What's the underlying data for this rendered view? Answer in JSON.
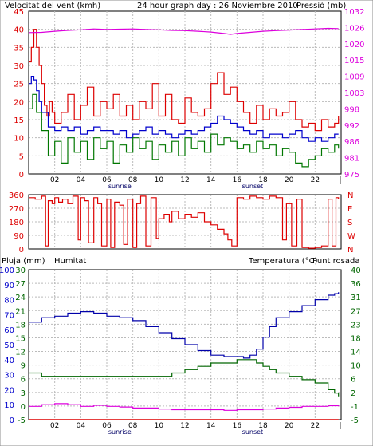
{
  "header": {
    "wind_label": "Velocitat del vent (kmh)",
    "title": "24 hour graph day : 26 Noviembre 2010",
    "pressure_label": "Pressió (mb)"
  },
  "lower_header": {
    "rain_label": "Pluja (mm)",
    "humidity_label": "Humitat",
    "temp_label": "Temperatura (°C)",
    "dew_label": "Punt rosada"
  },
  "time_axis": {
    "hour_ticks": [
      "02",
      "04",
      "06",
      "08",
      "10",
      "12",
      "14",
      "16",
      "18",
      "20",
      "22"
    ],
    "end_mark": "|",
    "sunrise_label": "sunrise",
    "sunset_label": "sunset",
    "sunrise_hour": 7.0,
    "sunset_hour": 17.2
  },
  "colors": {
    "wind_gust": "#dd0000",
    "wind_avg": "#0000cc",
    "wind_min": "#007700",
    "pressure": "#dd00dd",
    "direction": "#dd0000",
    "humidity": "#0000aa",
    "temperature": "#006600",
    "dew_point": "#dd00dd",
    "rain": "#dd0000",
    "grid": "#bbbbbb"
  },
  "chart_data": [
    {
      "type": "line",
      "name": "wind_pressure",
      "x_unit": "hour",
      "left_axis": {
        "label": "Velocitat del vent (kmh)",
        "ticks": [
          "0",
          "5",
          "10",
          "15",
          "20",
          "25",
          "30",
          "35",
          "40",
          "45"
        ],
        "ylim": [
          0,
          45
        ]
      },
      "right_axis": {
        "label": "Pressió (mb)",
        "ticks": [
          "975",
          "981",
          "986",
          "992",
          "998",
          "1003",
          "1009",
          "1015",
          "1020",
          "1026",
          "1032"
        ],
        "ylim": [
          975,
          1032
        ]
      },
      "series": [
        {
          "name": "gust",
          "axis": "left",
          "x": [
            0,
            0.2,
            0.4,
            0.6,
            0.8,
            1,
            1.2,
            1.4,
            1.6,
            1.8,
            2,
            2.5,
            3,
            3.5,
            4,
            4.5,
            5,
            5.5,
            6,
            6.5,
            7,
            7.5,
            8,
            8.5,
            9,
            9.5,
            10,
            10.5,
            11,
            11.5,
            12,
            12.5,
            13,
            13.5,
            14,
            14.5,
            15,
            15.5,
            16,
            16.5,
            17,
            17.5,
            18,
            18.5,
            19,
            19.5,
            20,
            20.5,
            21,
            21.5,
            22,
            22.5,
            23,
            23.5,
            23.8
          ],
          "values": [
            31,
            35,
            40,
            35,
            30,
            25,
            19,
            16,
            20,
            17,
            14,
            17,
            22,
            15,
            19,
            24,
            16,
            20,
            18,
            22,
            16,
            19,
            15,
            20,
            18,
            25,
            16,
            22,
            15,
            14,
            21,
            17,
            16,
            18,
            25,
            28,
            22,
            24,
            20,
            17,
            14,
            19,
            15,
            18,
            16,
            17,
            20,
            15,
            13,
            14,
            12,
            15,
            13,
            14,
            16
          ]
        },
        {
          "name": "average",
          "axis": "left",
          "x": [
            0,
            0.2,
            0.4,
            0.6,
            0.8,
            1,
            1.5,
            2,
            2.5,
            3,
            3.5,
            4,
            4.5,
            5,
            5.5,
            6,
            6.5,
            7,
            7.5,
            8,
            8.5,
            9,
            9.5,
            10,
            10.5,
            11,
            11.5,
            12,
            12.5,
            13,
            13.5,
            14,
            14.5,
            15,
            15.5,
            16,
            16.5,
            17,
            17.5,
            18,
            18.5,
            19,
            19.5,
            20,
            20.5,
            21,
            21.5,
            22,
            22.5,
            23,
            23.5,
            23.8
          ],
          "values": [
            25,
            27,
            26,
            23,
            20,
            17,
            13,
            12,
            13,
            12,
            13,
            11,
            12,
            13,
            12,
            12,
            11,
            12,
            10,
            11,
            12,
            13,
            11,
            12,
            11,
            10,
            11,
            12,
            11,
            12,
            13,
            14,
            16,
            15,
            14,
            13,
            12,
            11,
            12,
            10,
            11,
            11,
            10,
            11,
            12,
            10,
            9,
            10,
            9,
            10,
            11,
            11
          ]
        },
        {
          "name": "minimum",
          "axis": "left",
          "x": [
            0,
            0.3,
            0.6,
            1,
            1.5,
            2,
            2.5,
            3,
            3.5,
            4,
            4.5,
            5,
            5.5,
            6,
            6.5,
            7,
            7.5,
            8,
            8.5,
            9,
            9.5,
            10,
            10.5,
            11,
            11.5,
            12,
            12.5,
            13,
            13.5,
            14,
            14.5,
            15,
            15.5,
            16,
            16.5,
            17,
            17.5,
            18,
            18.5,
            19,
            19.5,
            20,
            20.5,
            21,
            21.5,
            22,
            22.5,
            23,
            23.5,
            23.8
          ],
          "values": [
            18,
            22,
            17,
            12,
            5,
            9,
            3,
            10,
            6,
            9,
            4,
            10,
            7,
            9,
            3,
            8,
            6,
            10,
            7,
            9,
            4,
            8,
            6,
            9,
            5,
            10,
            7,
            9,
            6,
            11,
            8,
            10,
            9,
            7,
            8,
            6,
            9,
            7,
            8,
            5,
            7,
            6,
            3,
            2,
            4,
            5,
            7,
            6,
            8,
            7
          ]
        },
        {
          "name": "pressure",
          "axis": "right",
          "x": [
            0,
            1,
            2,
            3,
            4,
            5,
            6,
            7,
            8,
            9,
            10,
            11,
            12,
            13,
            14,
            15,
            15.5,
            16,
            17,
            18,
            19,
            20,
            21,
            22,
            23,
            23.8
          ],
          "values": [
            1024.5,
            1024.6,
            1025.0,
            1025.3,
            1025.5,
            1025.8,
            1025.6,
            1025.7,
            1025.8,
            1025.6,
            1025.5,
            1025.3,
            1025.2,
            1025.0,
            1024.7,
            1024.2,
            1023.9,
            1024.2,
            1024.6,
            1025.0,
            1025.2,
            1025.4,
            1025.6,
            1025.8,
            1026.0,
            1025.9
          ]
        }
      ]
    },
    {
      "type": "line",
      "name": "wind_direction",
      "x_unit": "hour",
      "left_axis": {
        "ticks": [
          "0",
          "90",
          "180",
          "270",
          "360"
        ],
        "ylim": [
          0,
          360
        ]
      },
      "right_axis": {
        "ticks": [
          "N",
          "W",
          "S",
          "E",
          "N"
        ]
      },
      "series": [
        {
          "name": "direction",
          "x": [
            0,
            0.5,
            1,
            1.3,
            1.5,
            1.8,
            2,
            2.3,
            2.6,
            3,
            3.4,
            3.8,
            4,
            4.3,
            4.6,
            5,
            5.3,
            5.6,
            6,
            6.3,
            6.6,
            7,
            7.3,
            7.6,
            8,
            8.3,
            8.6,
            9,
            9.4,
            9.8,
            10,
            10.4,
            10.8,
            11,
            11.5,
            12,
            12.5,
            13,
            13.5,
            14,
            14.5,
            15,
            15.3,
            15.6,
            16,
            16.5,
            17,
            17.5,
            18,
            18.5,
            19,
            19.5,
            19.8,
            20.2,
            20.6,
            21,
            21.5,
            22,
            22.5,
            23,
            23.3,
            23.6,
            23.8
          ],
          "values": [
            340,
            330,
            350,
            20,
            320,
            300,
            340,
            310,
            330,
            300,
            350,
            60,
            340,
            320,
            40,
            340,
            300,
            20,
            330,
            10,
            310,
            290,
            30,
            330,
            10,
            300,
            350,
            20,
            340,
            70,
            200,
            230,
            180,
            250,
            200,
            230,
            210,
            240,
            180,
            160,
            130,
            100,
            60,
            20,
            340,
            330,
            350,
            340,
            330,
            350,
            340,
            60,
            300,
            20,
            330,
            10,
            5,
            10,
            20,
            330,
            20,
            340,
            330
          ]
        }
      ]
    },
    {
      "type": "line",
      "name": "rain_humidity_temperature",
      "x_unit": "hour",
      "left_axis_outer": {
        "label": "Pluja (mm)",
        "ticks": [
          "0",
          "10",
          "20",
          "30",
          "40",
          "50",
          "60",
          "70",
          "80",
          "90",
          "100"
        ],
        "ylim": [
          0,
          100
        ]
      },
      "left_axis_inner": {
        "label": "Humitat",
        "ticks": [
          "-5",
          "0",
          "3",
          "6",
          "9",
          "12",
          "15",
          "18",
          "21",
          "24",
          "27",
          "30"
        ]
      },
      "right_axis": {
        "label": "Temperatura (°C)",
        "ticks": [
          "-5",
          "-1",
          "2",
          "6",
          "10",
          "14",
          "18",
          "23",
          "27",
          "31",
          "36",
          "40"
        ],
        "ylim": [
          -5,
          40
        ]
      },
      "series": [
        {
          "name": "humidity",
          "axis": "left",
          "x": [
            0,
            1,
            2,
            3,
            4,
            5,
            6,
            7,
            8,
            9,
            10,
            11,
            12,
            13,
            14,
            15,
            16,
            16.5,
            17,
            17.5,
            18,
            18.5,
            19,
            20,
            21,
            22,
            23,
            23.5,
            23.8
          ],
          "values": [
            65,
            68,
            69,
            71,
            72,
            71,
            69,
            68,
            66,
            62,
            58,
            54,
            50,
            46,
            43,
            42,
            42,
            41,
            43,
            47,
            55,
            62,
            68,
            72,
            76,
            80,
            83,
            84,
            85
          ]
        },
        {
          "name": "temperature",
          "axis": "right",
          "x": [
            0,
            1,
            2,
            3,
            4,
            5,
            6,
            7,
            8,
            9,
            10,
            11,
            12,
            13,
            14,
            15,
            16,
            16.5,
            17,
            17.5,
            18,
            18.5,
            19,
            20,
            21,
            22,
            23,
            23.5,
            23.8
          ],
          "values": [
            9,
            8,
            8,
            8,
            8,
            8,
            8,
            8,
            8,
            8,
            8,
            9,
            10,
            11,
            12,
            12,
            13,
            13,
            13,
            12,
            11,
            10,
            9,
            8,
            7,
            6,
            4,
            3,
            2
          ]
        },
        {
          "name": "dew_point",
          "axis": "right",
          "x": [
            0,
            1,
            2,
            3,
            4,
            5,
            6,
            7,
            8,
            9,
            10,
            11,
            12,
            13,
            14,
            15,
            16,
            17,
            18,
            19,
            20,
            21,
            22,
            23,
            23.8
          ],
          "values": [
            -1,
            -0.5,
            -0.2,
            -0.5,
            -1,
            -0.7,
            -1,
            -1.2,
            -1.5,
            -1.5,
            -1.8,
            -2,
            -2,
            -2,
            -2,
            -2.2,
            -2,
            -2,
            -1.8,
            -1.5,
            -1.3,
            -1,
            -1,
            -0.8,
            -1
          ]
        },
        {
          "name": "rain",
          "axis": "left",
          "x": [
            0,
            23.8
          ],
          "values": [
            0,
            0
          ]
        }
      ]
    }
  ]
}
